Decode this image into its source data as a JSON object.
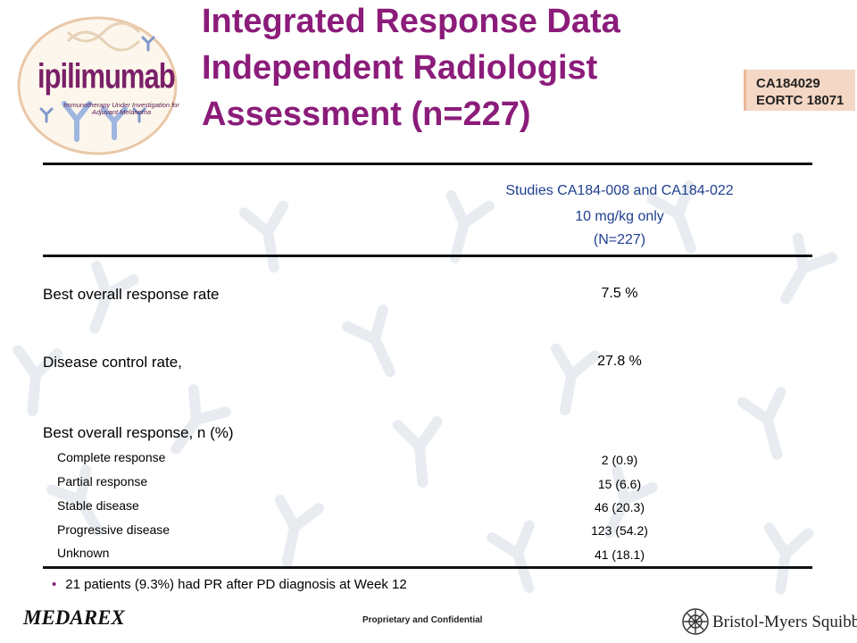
{
  "logo": {
    "name": "ipilimumab",
    "tagline": "Immunotherapy Under Investigation for Adjuvant Melanoma"
  },
  "title_lines": [
    "Integrated Response Data",
    "Independent Radiologist",
    "Assessment (n=227)"
  ],
  "study_tag": [
    "CA184029",
    "EORTC 18071"
  ],
  "table": {
    "header": {
      "studies": "Studies CA184-008 and CA184-022",
      "dose": "10 mg/kg only",
      "n": "(N=227)"
    },
    "rows": [
      {
        "label": "Best overall response rate",
        "value": "7.5 %"
      },
      {
        "label": "Disease control rate,",
        "value": "27.8 %"
      },
      {
        "label": "Best overall  response, n (%)",
        "value": ""
      }
    ],
    "subrows": [
      {
        "label": "Complete response",
        "value": "2 (0.9)"
      },
      {
        "label": "Partial response",
        "value": "15 (6.6)"
      },
      {
        "label": "Stable disease",
        "value": "46 (20.3)"
      },
      {
        "label": "Progressive disease",
        "value": "123 (54.2)"
      },
      {
        "label": "Unknown",
        "value": "41 (18.1)"
      }
    ]
  },
  "footnote": {
    "bullet": "•",
    "text": "21 patients (9.3%) had PR after PD diagnosis at Week 12"
  },
  "footer": {
    "left_logo": "MEDAREX",
    "center": "Proprietary and Confidential",
    "right_logo": "Bristol-Myers Squibb"
  },
  "colors": {
    "title": "#8b1c7a",
    "header_text": "#1f3f8f",
    "study_tag_bg": "#f4d7c4"
  }
}
